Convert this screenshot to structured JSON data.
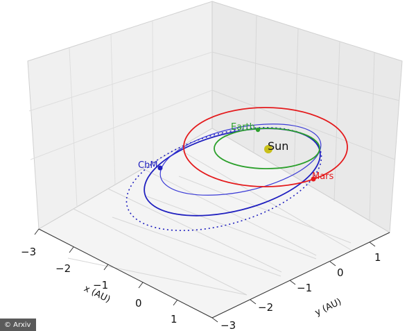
{
  "credit": "© Arxiv",
  "chart_data": {
    "type": "line",
    "projection": "3d",
    "title": "",
    "xlabel": "x (AU)",
    "ylabel": "y (AU)",
    "xlim": [
      -3,
      2
    ],
    "ylim": [
      -3,
      2
    ],
    "x_ticks": [
      "−3",
      "−2",
      "−1",
      "0",
      "1"
    ],
    "y_ticks": [
      "−3",
      "−2",
      "−1",
      "0",
      "1"
    ],
    "grid": true,
    "series": [
      {
        "name": "Earth",
        "color": "#2ca02c",
        "style": "solid",
        "orbit": "circle",
        "semi_major_axis_au": 1.0,
        "eccentricity": 0.0
      },
      {
        "name": "Mars",
        "color": "#e41a1c",
        "style": "solid",
        "orbit": "ellipse",
        "semi_major_axis_au": 1.52,
        "eccentricity": 0.09
      },
      {
        "name": "ChM",
        "color": "#1f1fbf",
        "style": "solid",
        "orbit": "ellipse",
        "semi_major_axis_au": 1.8,
        "eccentricity": 0.45
      },
      {
        "name": "",
        "color": "#1f1fbf",
        "style": "dotted",
        "orbit": "ellipse",
        "semi_major_axis_au": 2.0,
        "eccentricity": 0.5
      }
    ],
    "annotations": [
      "Sun",
      "Earth",
      "Mars",
      "ChM"
    ]
  }
}
